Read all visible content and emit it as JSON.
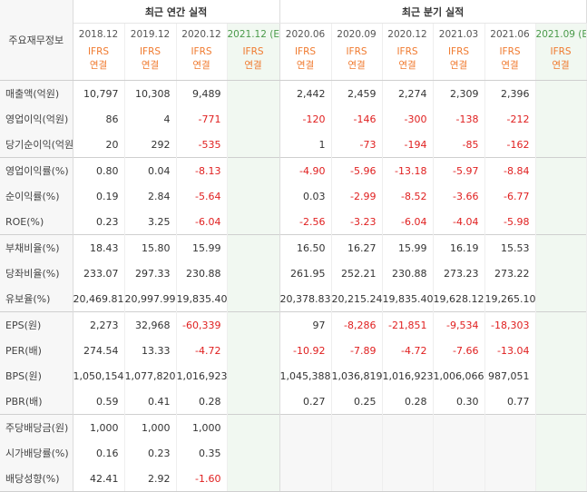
{
  "header": {
    "row_label": "주요재무정보",
    "annual_group": "최근 연간 실적",
    "quarter_group": "최근 분기 실적",
    "ifrs_top": "IFRS",
    "ifrs_bottom": "연결",
    "annual_periods": [
      "2018.12",
      "2019.12",
      "2020.12",
      "2021.12"
    ],
    "quarter_periods": [
      "2020.06",
      "2020.09",
      "2020.12",
      "2021.03",
      "2021.06",
      "2021.09"
    ],
    "estimate_mark": "(E)"
  },
  "rows": [
    {
      "label": "매출액(억원)",
      "annual": [
        "10,797",
        "10,308",
        "9,489",
        ""
      ],
      "quarter": [
        "2,442",
        "2,459",
        "2,274",
        "2,309",
        "2,396",
        ""
      ]
    },
    {
      "label": "영업이익(억원)",
      "annual": [
        "86",
        "4",
        "-771",
        ""
      ],
      "quarter": [
        "-120",
        "-146",
        "-300",
        "-138",
        "-212",
        ""
      ]
    },
    {
      "label": "당기순이익(억원)",
      "annual": [
        "20",
        "292",
        "-535",
        ""
      ],
      "quarter": [
        "1",
        "-73",
        "-194",
        "-85",
        "-162",
        ""
      ]
    },
    {
      "label": "영업이익률(%)",
      "annual": [
        "0.80",
        "0.04",
        "-8.13",
        ""
      ],
      "quarter": [
        "-4.90",
        "-5.96",
        "-13.18",
        "-5.97",
        "-8.84",
        ""
      ]
    },
    {
      "label": "순이익률(%)",
      "annual": [
        "0.19",
        "2.84",
        "-5.64",
        ""
      ],
      "quarter": [
        "0.03",
        "-2.99",
        "-8.52",
        "-3.66",
        "-6.77",
        ""
      ]
    },
    {
      "label": "ROE(%)",
      "annual": [
        "0.23",
        "3.25",
        "-6.04",
        ""
      ],
      "quarter": [
        "-2.56",
        "-3.23",
        "-6.04",
        "-4.04",
        "-5.98",
        ""
      ]
    },
    {
      "label": "부채비율(%)",
      "annual": [
        "18.43",
        "15.80",
        "15.99",
        ""
      ],
      "quarter": [
        "16.50",
        "16.27",
        "15.99",
        "16.19",
        "15.53",
        ""
      ]
    },
    {
      "label": "당좌비율(%)",
      "annual": [
        "233.07",
        "297.33",
        "230.88",
        ""
      ],
      "quarter": [
        "261.95",
        "252.21",
        "230.88",
        "273.23",
        "273.22",
        ""
      ]
    },
    {
      "label": "유보율(%)",
      "annual": [
        "20,469.81",
        "20,997.99",
        "19,835.40",
        ""
      ],
      "quarter": [
        "20,378.83",
        "20,215.24",
        "19,835.40",
        "19,628.12",
        "19,265.10",
        ""
      ]
    },
    {
      "label": "EPS(원)",
      "annual": [
        "2,273",
        "32,968",
        "-60,339",
        ""
      ],
      "quarter": [
        "97",
        "-8,286",
        "-21,851",
        "-9,534",
        "-18,303",
        ""
      ]
    },
    {
      "label": "PER(배)",
      "annual": [
        "274.54",
        "13.33",
        "-4.72",
        ""
      ],
      "quarter": [
        "-10.92",
        "-7.89",
        "-4.72",
        "-7.66",
        "-13.04",
        ""
      ]
    },
    {
      "label": "BPS(원)",
      "annual": [
        "1,050,154",
        "1,077,820",
        "1,016,923",
        ""
      ],
      "quarter": [
        "1,045,388",
        "1,036,819",
        "1,016,923",
        "1,006,066",
        "987,051",
        ""
      ]
    },
    {
      "label": "PBR(배)",
      "annual": [
        "0.59",
        "0.41",
        "0.28",
        ""
      ],
      "quarter": [
        "0.27",
        "0.25",
        "0.28",
        "0.30",
        "0.77",
        ""
      ]
    },
    {
      "label": "주당배당금(원)",
      "annual": [
        "1,000",
        "1,000",
        "1,000",
        ""
      ],
      "quarter": [
        "",
        "",
        "",
        "",
        "",
        ""
      ]
    },
    {
      "label": "시가배당률(%)",
      "annual": [
        "0.16",
        "0.23",
        "0.35",
        ""
      ],
      "quarter": [
        "",
        "",
        "",
        "",
        "",
        ""
      ]
    },
    {
      "label": "배당성향(%)",
      "annual": [
        "42.41",
        "2.92",
        "-1.60",
        ""
      ],
      "quarter": [
        "",
        "",
        "",
        "",
        "",
        ""
      ]
    }
  ],
  "colors": {
    "negative": "#e02020",
    "ifrs": "#f07a2f",
    "estimate_bg": "#f1f8f1",
    "estimate_text": "#4a9a4a",
    "label_bg": "#f7f7f7"
  }
}
